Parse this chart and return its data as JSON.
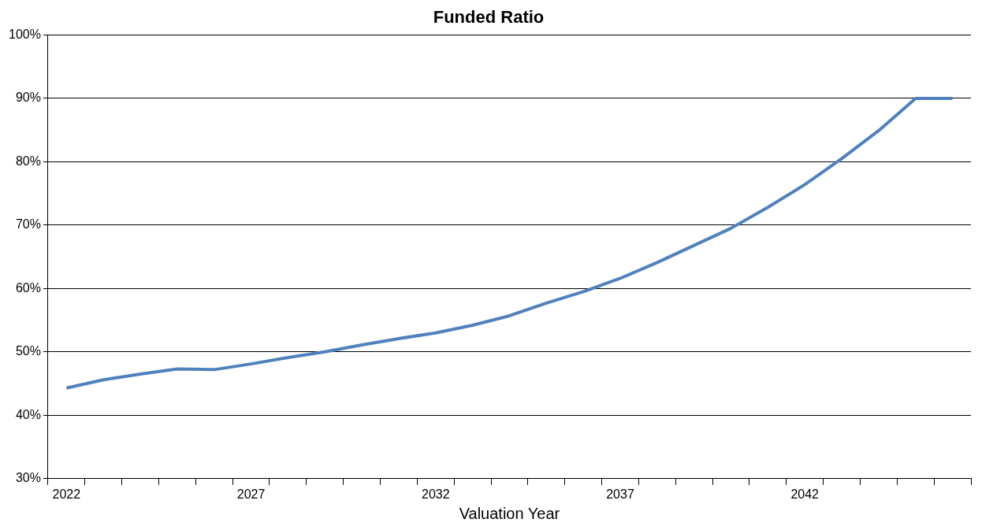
{
  "chart_data": {
    "type": "line",
    "title": "Funded Ratio",
    "xlabel": "Valuation Year",
    "categories": [
      "2022",
      null,
      null,
      null,
      null,
      "2027",
      null,
      null,
      null,
      null,
      "2032",
      null,
      null,
      null,
      null,
      "2037",
      null,
      null,
      null,
      null,
      "2042",
      null,
      null,
      null,
      null
    ],
    "series": [
      {
        "color": "#4f81bd",
        "values": [
          44.3,
          45.6,
          46.5,
          47.3,
          47.2,
          48.1,
          49.1,
          50.0,
          51.1,
          52.1,
          53.0,
          54.2,
          55.7,
          57.7,
          59.5,
          61.6,
          64.1,
          66.8,
          69.5,
          72.8,
          76.4,
          80.5,
          84.9,
          90.0,
          90.0
        ]
      }
    ],
    "ylim": [
      30,
      100
    ],
    "yticks": [
      {
        "value": 30,
        "label": "30%"
      },
      {
        "value": 40,
        "label": "40%"
      },
      {
        "value": 50,
        "label": "50%"
      },
      {
        "value": 60,
        "label": "60%"
      },
      {
        "value": 70,
        "label": "70%"
      },
      {
        "value": 80,
        "label": "80%"
      },
      {
        "value": 90,
        "label": "90%"
      },
      {
        "value": 100,
        "label": "100%"
      }
    ],
    "grid": "y",
    "legend": false,
    "marker": "none",
    "line_style": "solid"
  }
}
